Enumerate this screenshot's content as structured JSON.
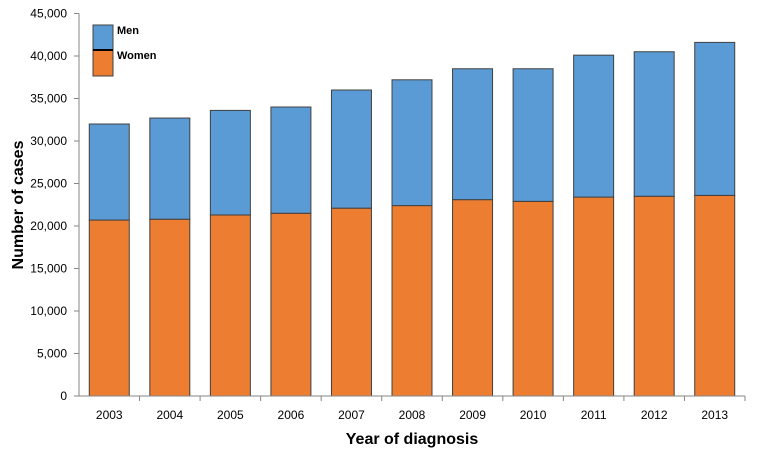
{
  "chart_data": {
    "type": "bar",
    "stacked": true,
    "title": "",
    "xlabel": "Year of diagnosis",
    "ylabel": "Number of cases",
    "ylim": [
      0,
      45000
    ],
    "yticks": [
      "0",
      "5,000",
      "10,000",
      "15,000",
      "20,000",
      "25,000",
      "30,000",
      "35,000",
      "40,000",
      "45,000"
    ],
    "ytick_values": [
      0,
      5000,
      10000,
      15000,
      20000,
      25000,
      30000,
      35000,
      40000,
      45000
    ],
    "categories": [
      "2003",
      "2004",
      "2005",
      "2006",
      "2007",
      "2008",
      "2009",
      "2010",
      "2011",
      "2012",
      "2013"
    ],
    "series": [
      {
        "name": "Women",
        "color": "#ED7D31",
        "values": [
          20700,
          20800,
          21300,
          21500,
          22100,
          22400,
          23100,
          22900,
          23400,
          23500,
          23600
        ]
      },
      {
        "name": "Men",
        "color": "#5B9BD5",
        "values": [
          11300,
          11900,
          12300,
          12500,
          13900,
          14800,
          15400,
          15600,
          16700,
          17000,
          18000
        ]
      }
    ],
    "grid": false,
    "legend": {
      "placement": "top-left",
      "entries": [
        "Men",
        "Women"
      ]
    }
  }
}
